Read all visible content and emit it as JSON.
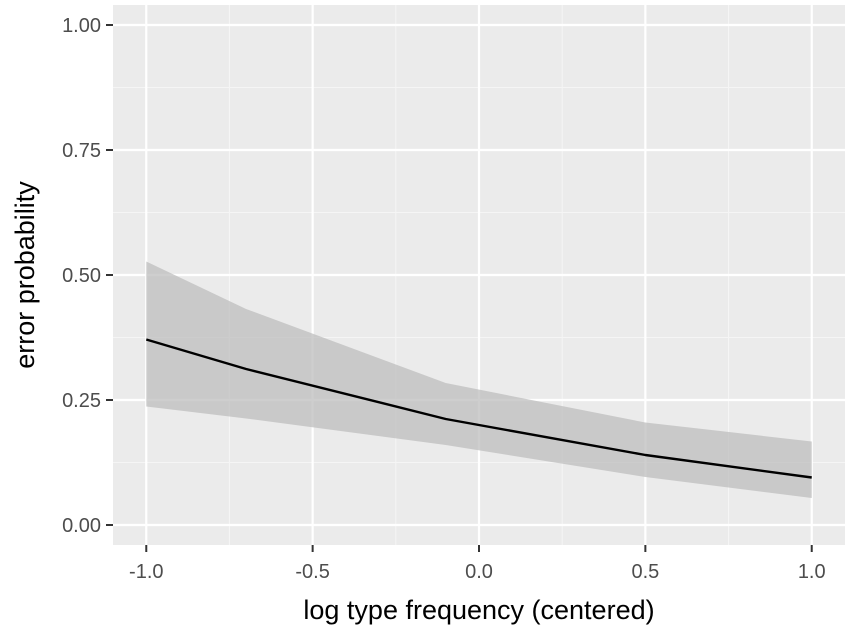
{
  "chart_data": {
    "type": "line",
    "title": "",
    "xlabel": "log type frequency (centered)",
    "ylabel": "error probability",
    "xlim": [
      -1.1,
      1.1
    ],
    "ylim": [
      -0.04,
      1.04
    ],
    "x_ticks": [
      -1.0,
      -0.5,
      0.0,
      0.5,
      1.0
    ],
    "x_tick_labels": [
      "-1.0",
      "-0.5",
      "0.0",
      "0.5",
      "1.0"
    ],
    "y_ticks": [
      0.0,
      0.25,
      0.5,
      0.75,
      1.0
    ],
    "y_tick_labels": [
      "0.00",
      "0.25",
      "0.50",
      "0.75",
      "1.00"
    ],
    "grid": true,
    "legend": "none",
    "series": [
      {
        "x": [
          -1.0,
          -0.7,
          -0.1,
          0.5,
          1.0
        ],
        "y": [
          0.371,
          0.312,
          0.212,
          0.14,
          0.095
        ],
        "lower": [
          0.237,
          0.213,
          0.16,
          0.096,
          0.054
        ],
        "upper": [
          0.527,
          0.432,
          0.284,
          0.205,
          0.167
        ],
        "color": "#000000",
        "ribbon_color": "#bdbdbd"
      }
    ],
    "colors": {
      "panel_background": "#ebebeb",
      "grid_major": "#ffffff",
      "grid_minor": "#f5f5f5"
    }
  }
}
